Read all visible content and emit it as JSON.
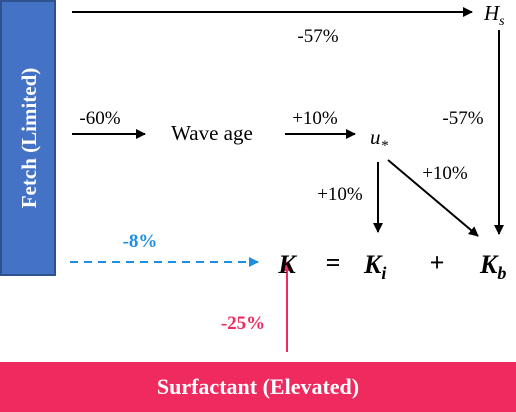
{
  "fetch_box": {
    "label": "Fetch (Limited)"
  },
  "surfactant_box": {
    "label": "Surfactant (Elevated)"
  },
  "nodes": {
    "hs": {
      "base": "H",
      "sub": "s"
    },
    "wave_age": {
      "label": "Wave age"
    },
    "u_star": {
      "base": "u",
      "sub": "*"
    }
  },
  "edges": {
    "fetch_to_hs": "-57%",
    "fetch_to_wave_age": "-60%",
    "wave_age_to_u_star": "+10%",
    "hs_to_kb": "-57%",
    "u_star_to_ki": "+10%",
    "u_star_to_kb": "+10%",
    "fetch_to_k": "-8%",
    "surfactant_to_k": "-25%"
  },
  "equation": {
    "lhs": "K",
    "equals": "=",
    "term1": {
      "base": "K",
      "sub": "i"
    },
    "plus": "+",
    "term2": {
      "base": "K",
      "sub": "b"
    }
  }
}
